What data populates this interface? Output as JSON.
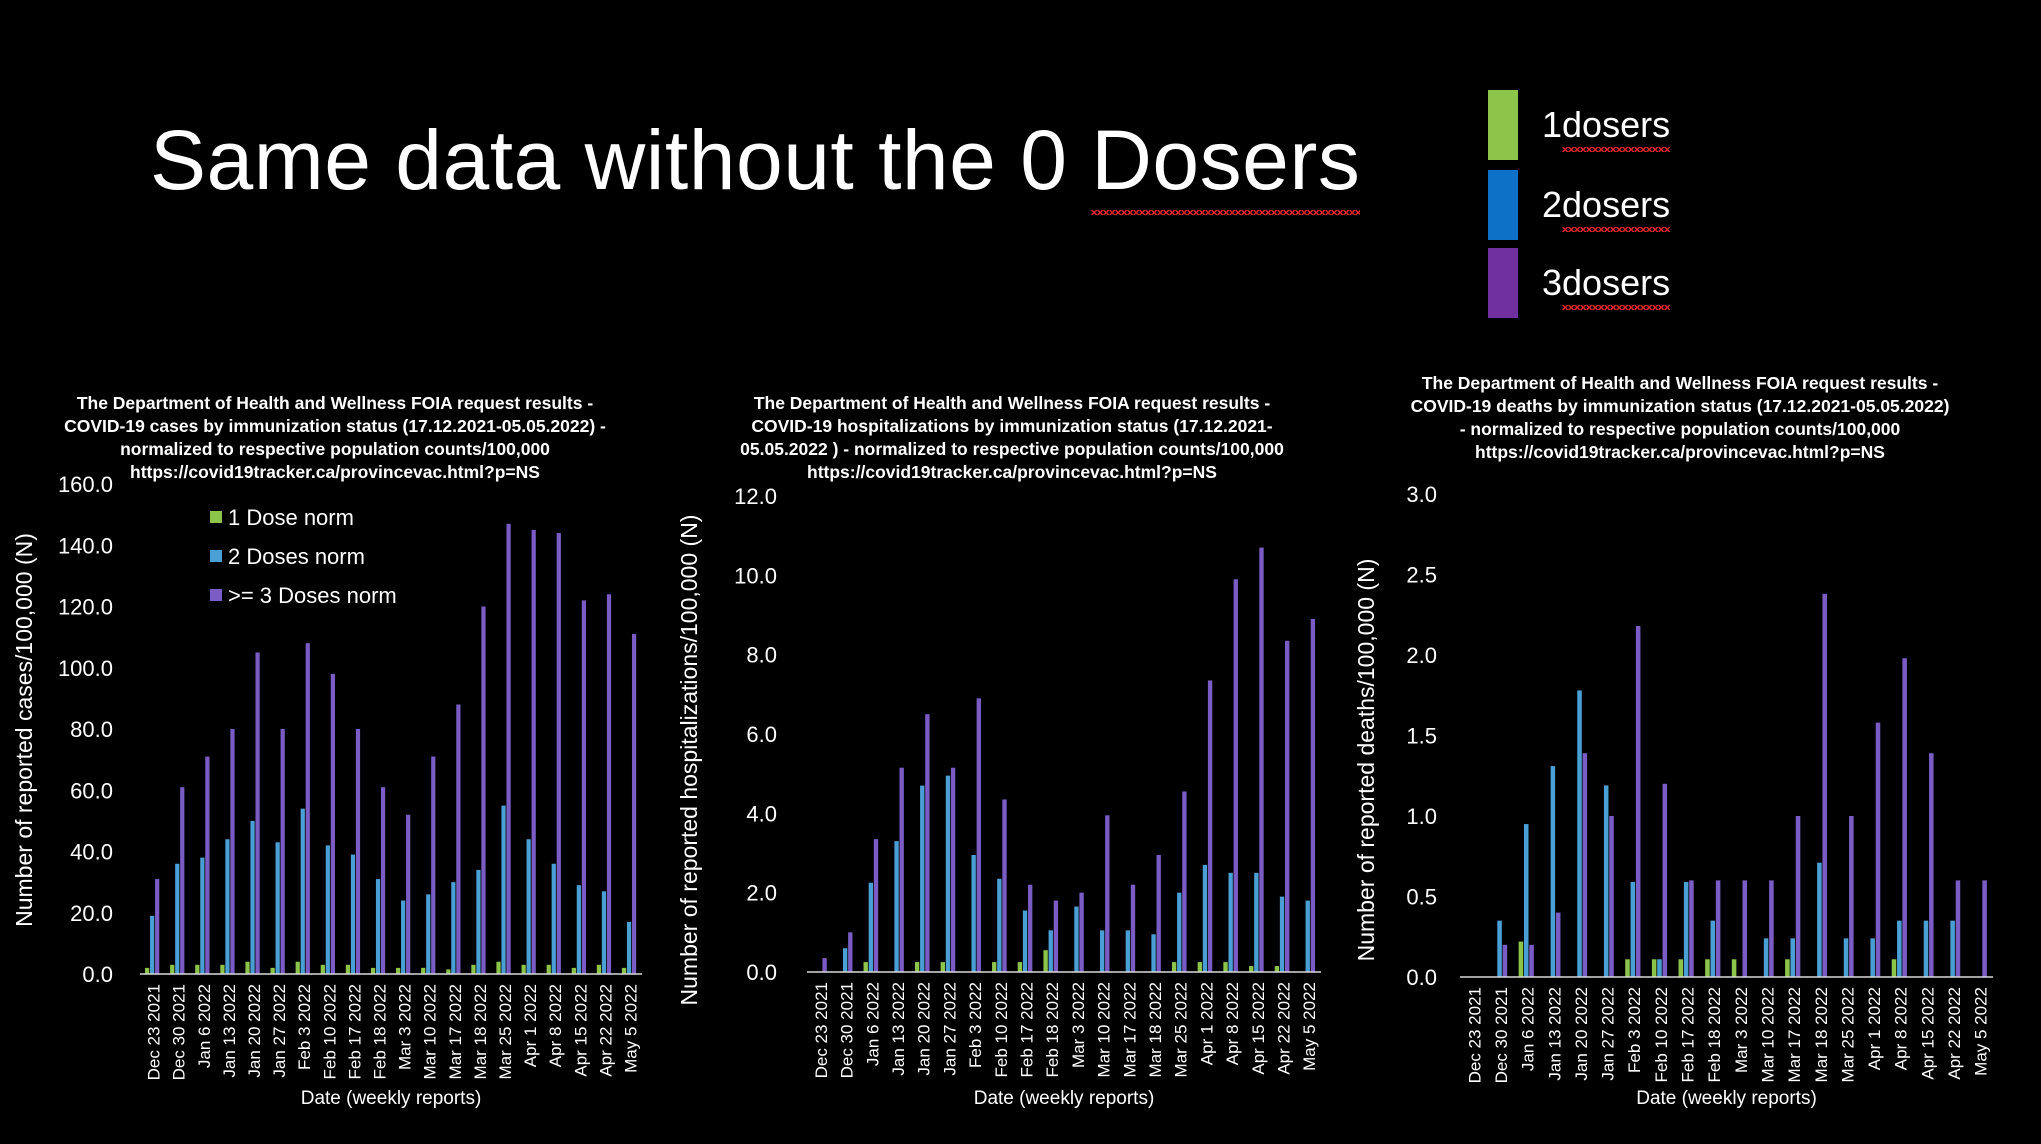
{
  "slide": {
    "title_before": "Same data without the 0 ",
    "title_word": "Dosers",
    "legend": [
      {
        "label": "1 ",
        "word": "dosers",
        "color": "#8dc54a"
      },
      {
        "label": "2 ",
        "word": "dosers",
        "color": "#0e71c8"
      },
      {
        "label": "3 ",
        "word": "dosers",
        "color": "#7030a0"
      }
    ]
  },
  "colors": {
    "dose1": "#8dc54a",
    "dose2": "#4a9fd4",
    "dose3": "#7a5cc4"
  },
  "chart_data": [
    {
      "type": "bar",
      "title_lines": [
        "The Department of Health and Wellness FOIA request results -",
        "COVID-19 cases by immunization status (17.12.2021-05.05.2022) -",
        "normalized to respective population counts/100,000",
        "https://covid19tracker.ca/provincevac.html?p=NS"
      ],
      "xlabel": "Date (weekly reports)",
      "ylabel": "Number of reported cases/100,000 (N)",
      "ylim": [
        0,
        160
      ],
      "yticks": [
        "0.0",
        "20.0",
        "40.0",
        "60.0",
        "80.0",
        "100.0",
        "120.0",
        "140.0",
        "160.0"
      ],
      "legend": [
        "1 Dose norm",
        "2 Doses norm",
        ">= 3 Doses norm"
      ],
      "categories": [
        "Dec 23 2021",
        "Dec 30 2021",
        "Jan 6 2022",
        "Jan 13 2022",
        "Jan 20 2022",
        "Jan 27 2022",
        "Feb 3 2022",
        "Feb 10 2022",
        "Feb 17 2022",
        "Feb 18 2022",
        "Mar 3 2022",
        "Mar 10 2022",
        "Mar 17 2022",
        "Mar 18 2022",
        "Mar 25 2022",
        "Apr 1 2022",
        "Apr 8 2022",
        "Apr 15 2022",
        "Apr 22 2022",
        "May 5 2022"
      ],
      "series": [
        {
          "name": "1 Dose norm",
          "values": [
            2,
            3,
            3,
            3,
            4,
            2,
            4,
            3,
            3,
            2,
            2,
            2,
            1.5,
            3,
            4,
            3,
            3,
            2,
            3,
            2
          ]
        },
        {
          "name": "2 Doses norm",
          "values": [
            19,
            36,
            38,
            44,
            50,
            43,
            54,
            42,
            39,
            31,
            24,
            26,
            30,
            34,
            55,
            44,
            36,
            29,
            27,
            17
          ]
        },
        {
          "name": ">= 3 Doses norm",
          "values": [
            31,
            61,
            71,
            80,
            105,
            80,
            108,
            98,
            80,
            61,
            52,
            71,
            88,
            120,
            147,
            145,
            144,
            122,
            124,
            111
          ]
        }
      ]
    },
    {
      "type": "bar",
      "title_lines": [
        "The Department of Health and Wellness FOIA request results -",
        "COVID-19 hospitalizations by immunization status (17.12.2021-",
        "05.05.2022 ) - normalized to respective population counts/100,000",
        "https://covid19tracker.ca/provincevac.html?p=NS"
      ],
      "xlabel": "Date (weekly reports)",
      "ylabel": "Number of reported hospitalizations/100,000 (N)",
      "ylim": [
        0,
        12
      ],
      "yticks": [
        "0.0",
        "2.0",
        "4.0",
        "6.0",
        "8.0",
        "10.0",
        "12.0"
      ],
      "categories": [
        "Dec 23 2021",
        "Dec 30 2021",
        "Jan 6 2022",
        "Jan 13 2022",
        "Jan 20 2022",
        "Jan 27 2022",
        "Feb 3 2022",
        "Feb 10 2022",
        "Feb 17 2022",
        "Feb 18 2022",
        "Mar 3 2022",
        "Mar 10 2022",
        "Mar 17 2022",
        "Mar 18 2022",
        "Mar 25 2022",
        "Apr 1 2022",
        "Apr 8 2022",
        "Apr 15 2022",
        "Apr 22 2022",
        "May 5 2022"
      ],
      "series": [
        {
          "name": "1 Dose norm",
          "values": [
            0,
            0,
            0.25,
            0,
            0.25,
            0.25,
            0,
            0.25,
            0.25,
            0.55,
            0,
            0,
            0,
            0,
            0.25,
            0.25,
            0.25,
            0.15,
            0.15,
            0
          ]
        },
        {
          "name": "2 Doses norm",
          "values": [
            0,
            0.6,
            2.25,
            3.3,
            4.7,
            4.95,
            2.95,
            2.35,
            1.55,
            1.05,
            1.65,
            1.05,
            1.05,
            0.95,
            2.0,
            2.7,
            2.5,
            2.5,
            1.9,
            1.8
          ]
        },
        {
          "name": ">= 3 Doses norm",
          "values": [
            0.35,
            1.0,
            3.35,
            5.15,
            6.5,
            5.15,
            6.9,
            4.35,
            2.2,
            1.8,
            2.0,
            3.95,
            2.2,
            2.95,
            4.55,
            7.35,
            9.9,
            10.7,
            8.35,
            8.9
          ]
        }
      ]
    },
    {
      "type": "bar",
      "title_lines": [
        "The Department of Health and Wellness FOIA request results -",
        "COVID-19 deaths by immunization status (17.12.2021-05.05.2022)",
        "- normalized to respective population counts/100,000",
        "https://covid19tracker.ca/provincevac.html?p=NS"
      ],
      "xlabel": "Date (weekly reports)",
      "ylabel": "Number of reported deaths/100,000 (N)",
      "ylim": [
        0,
        3
      ],
      "yticks": [
        "0.0",
        "0.5",
        "1.0",
        "1.5",
        "2.0",
        "2.5",
        "3.0"
      ],
      "categories": [
        "Dec 23 2021",
        "Dec 30 2021",
        "Jan 6 2022",
        "Jan 13 2022",
        "Jan 20 2022",
        "Jan 27 2022",
        "Feb 3 2022",
        "Feb 10 2022",
        "Feb 17 2022",
        "Feb 18 2022",
        "Mar 3 2022",
        "Mar 10 2022",
        "Mar 17 2022",
        "Mar 18 2022",
        "Mar 25 2022",
        "Apr 1 2022",
        "Apr 8 2022",
        "Apr 15 2022",
        "Apr 22 2022",
        "May 5 2022"
      ],
      "series": [
        {
          "name": "1 Dose norm",
          "values": [
            0,
            0,
            0.22,
            0,
            0,
            0,
            0.11,
            0.11,
            0.11,
            0.11,
            0.11,
            0,
            0.11,
            0,
            0,
            0,
            0.11,
            0,
            0,
            0
          ]
        },
        {
          "name": "2 Doses norm",
          "values": [
            0,
            0.35,
            0.95,
            1.31,
            1.78,
            1.19,
            0.59,
            0.11,
            0.59,
            0.35,
            0,
            0.24,
            0.24,
            0.71,
            0.24,
            0.24,
            0.35,
            0.35,
            0.35,
            0
          ]
        },
        {
          "name": ">= 3 Doses norm",
          "values": [
            0,
            0.2,
            0.2,
            0.4,
            1.39,
            1.0,
            2.18,
            1.2,
            0.6,
            0.6,
            0.6,
            0.6,
            1.0,
            2.38,
            1.0,
            1.58,
            1.98,
            1.39,
            0.6,
            0.6
          ]
        }
      ]
    }
  ]
}
